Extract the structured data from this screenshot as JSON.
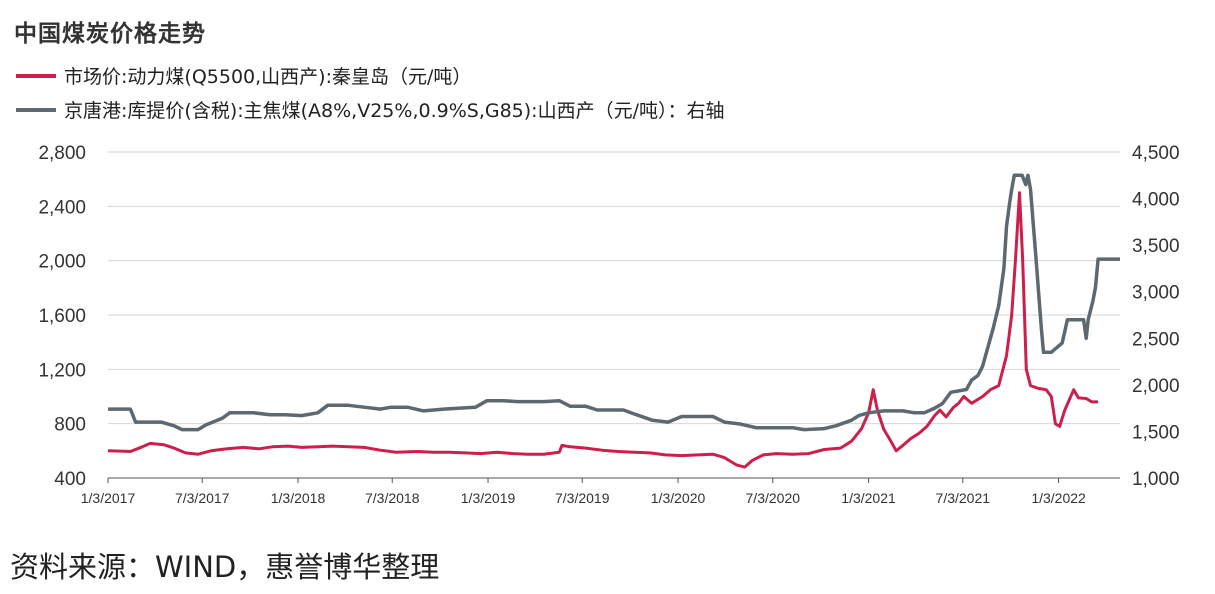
{
  "title": "中国煤炭价格走势",
  "source": "资料来源：WIND，惠誉博华整理",
  "colors": {
    "series1": "#cc1f4a",
    "series2": "#5e6870",
    "grid": "#d6d6d6",
    "axis": "#555555"
  },
  "chart_data": {
    "type": "line",
    "title": "中国煤炭价格走势",
    "x_tick_labels": [
      "1/3/2017",
      "7/3/2017",
      "1/3/2018",
      "7/3/2018",
      "1/3/2019",
      "7/3/2019",
      "1/3/2020",
      "7/3/2020",
      "1/3/2021",
      "7/3/2021",
      "1/3/2022"
    ],
    "x_range": [
      "2017-01-03",
      "2022-05-01"
    ],
    "y_left": {
      "range": [
        400,
        2800
      ],
      "ticks": [
        "400",
        "800",
        "1,200",
        "1,600",
        "2,000",
        "2,400",
        "2,800"
      ]
    },
    "y_right": {
      "range": [
        1000,
        4500
      ],
      "ticks": [
        "1,000",
        "1,500",
        "2,000",
        "2,500",
        "3,000",
        "3,500",
        "4,000",
        "4,500"
      ]
    },
    "grid": true,
    "legend_position": "top-left",
    "series": [
      {
        "name": "市场价:动力煤(Q5500,山西产):秦皇岛（元/吨）",
        "axis": "left",
        "points": [
          [
            "2017-01-03",
            600
          ],
          [
            "2017-02-15",
            595
          ],
          [
            "2017-03-10",
            630
          ],
          [
            "2017-03-25",
            655
          ],
          [
            "2017-04-20",
            645
          ],
          [
            "2017-05-10",
            620
          ],
          [
            "2017-06-01",
            585
          ],
          [
            "2017-06-25",
            575
          ],
          [
            "2017-07-20",
            600
          ],
          [
            "2017-08-20",
            615
          ],
          [
            "2017-09-20",
            625
          ],
          [
            "2017-10-20",
            615
          ],
          [
            "2017-11-15",
            630
          ],
          [
            "2017-12-15",
            635
          ],
          [
            "2018-01-10",
            625
          ],
          [
            "2018-02-10",
            630
          ],
          [
            "2018-03-10",
            635
          ],
          [
            "2018-04-10",
            630
          ],
          [
            "2018-05-10",
            625
          ],
          [
            "2018-06-10",
            605
          ],
          [
            "2018-07-10",
            590
          ],
          [
            "2018-08-20",
            595
          ],
          [
            "2018-09-20",
            590
          ],
          [
            "2018-10-20",
            590
          ],
          [
            "2018-11-20",
            585
          ],
          [
            "2018-12-20",
            580
          ],
          [
            "2019-01-20",
            590
          ],
          [
            "2019-02-20",
            580
          ],
          [
            "2019-03-20",
            575
          ],
          [
            "2019-04-20",
            575
          ],
          [
            "2019-05-20",
            590
          ],
          [
            "2019-05-25",
            640
          ],
          [
            "2019-06-10",
            630
          ],
          [
            "2019-07-10",
            620
          ],
          [
            "2019-08-10",
            605
          ],
          [
            "2019-09-10",
            595
          ],
          [
            "2019-10-10",
            590
          ],
          [
            "2019-11-10",
            585
          ],
          [
            "2019-12-10",
            570
          ],
          [
            "2020-01-10",
            565
          ],
          [
            "2020-02-10",
            570
          ],
          [
            "2020-03-10",
            575
          ],
          [
            "2020-04-01",
            550
          ],
          [
            "2020-04-25",
            495
          ],
          [
            "2020-05-10",
            480
          ],
          [
            "2020-05-25",
            530
          ],
          [
            "2020-06-15",
            570
          ],
          [
            "2020-07-10",
            580
          ],
          [
            "2020-08-10",
            575
          ],
          [
            "2020-09-10",
            580
          ],
          [
            "2020-10-10",
            610
          ],
          [
            "2020-11-10",
            620
          ],
          [
            "2020-12-01",
            670
          ],
          [
            "2020-12-20",
            760
          ],
          [
            "2021-01-03",
            880
          ],
          [
            "2021-01-12",
            1050
          ],
          [
            "2021-01-20",
            900
          ],
          [
            "2021-02-01",
            760
          ],
          [
            "2021-02-15",
            670
          ],
          [
            "2021-02-25",
            600
          ],
          [
            "2021-03-10",
            640
          ],
          [
            "2021-03-25",
            690
          ],
          [
            "2021-04-10",
            730
          ],
          [
            "2021-04-25",
            780
          ],
          [
            "2021-05-10",
            860
          ],
          [
            "2021-05-20",
            900
          ],
          [
            "2021-06-01",
            850
          ],
          [
            "2021-06-15",
            920
          ],
          [
            "2021-06-25",
            950
          ],
          [
            "2021-07-05",
            1000
          ],
          [
            "2021-07-20",
            950
          ],
          [
            "2021-08-10",
            1000
          ],
          [
            "2021-08-25",
            1050
          ],
          [
            "2021-09-10",
            1080
          ],
          [
            "2021-09-25",
            1300
          ],
          [
            "2021-10-05",
            1600
          ],
          [
            "2021-10-12",
            2000
          ],
          [
            "2021-10-20",
            2500
          ],
          [
            "2021-10-26",
            2000
          ],
          [
            "2021-11-02",
            1200
          ],
          [
            "2021-11-10",
            1080
          ],
          [
            "2021-11-25",
            1060
          ],
          [
            "2021-12-10",
            1050
          ],
          [
            "2021-12-20",
            1000
          ],
          [
            "2021-12-28",
            800
          ],
          [
            "2022-01-05",
            780
          ],
          [
            "2022-01-15",
            900
          ],
          [
            "2022-02-01",
            1050
          ],
          [
            "2022-02-10",
            990
          ],
          [
            "2022-02-25",
            985
          ],
          [
            "2022-03-08",
            960
          ],
          [
            "2022-03-20",
            960
          ]
        ]
      },
      {
        "name": "京唐港:库提价(含税):主焦煤(A8%,V25%,0.9%S,G85):山西产（元/吨）：右轴",
        "axis": "right",
        "points": [
          [
            "2017-01-03",
            1740
          ],
          [
            "2017-02-15",
            1740
          ],
          [
            "2017-02-25",
            1600
          ],
          [
            "2017-04-15",
            1600
          ],
          [
            "2017-05-10",
            1560
          ],
          [
            "2017-05-25",
            1520
          ],
          [
            "2017-06-25",
            1520
          ],
          [
            "2017-07-10",
            1570
          ],
          [
            "2017-08-10",
            1640
          ],
          [
            "2017-08-25",
            1700
          ],
          [
            "2017-10-10",
            1700
          ],
          [
            "2017-11-10",
            1680
          ],
          [
            "2017-12-10",
            1680
          ],
          [
            "2018-01-10",
            1670
          ],
          [
            "2018-02-10",
            1700
          ],
          [
            "2018-03-01",
            1780
          ],
          [
            "2018-04-10",
            1780
          ],
          [
            "2018-05-10",
            1760
          ],
          [
            "2018-06-10",
            1740
          ],
          [
            "2018-07-01",
            1760
          ],
          [
            "2018-08-01",
            1760
          ],
          [
            "2018-09-01",
            1720
          ],
          [
            "2018-10-10",
            1740
          ],
          [
            "2018-11-10",
            1750
          ],
          [
            "2018-12-10",
            1760
          ],
          [
            "2019-01-01",
            1830
          ],
          [
            "2019-02-01",
            1830
          ],
          [
            "2019-03-01",
            1820
          ],
          [
            "2019-04-20",
            1820
          ],
          [
            "2019-05-20",
            1830
          ],
          [
            "2019-06-10",
            1770
          ],
          [
            "2019-07-10",
            1770
          ],
          [
            "2019-08-01",
            1730
          ],
          [
            "2019-09-20",
            1730
          ],
          [
            "2019-10-15",
            1680
          ],
          [
            "2019-11-15",
            1620
          ],
          [
            "2019-12-15",
            1600
          ],
          [
            "2020-01-10",
            1660
          ],
          [
            "2020-03-10",
            1660
          ],
          [
            "2020-04-01",
            1600
          ],
          [
            "2020-05-01",
            1580
          ],
          [
            "2020-06-01",
            1540
          ],
          [
            "2020-07-10",
            1540
          ],
          [
            "2020-08-10",
            1540
          ],
          [
            "2020-09-01",
            1520
          ],
          [
            "2020-10-10",
            1530
          ],
          [
            "2020-11-01",
            1560
          ],
          [
            "2020-12-01",
            1620
          ],
          [
            "2020-12-15",
            1670
          ],
          [
            "2021-01-03",
            1700
          ],
          [
            "2021-02-01",
            1720
          ],
          [
            "2021-03-10",
            1720
          ],
          [
            "2021-04-01",
            1700
          ],
          [
            "2021-04-20",
            1700
          ],
          [
            "2021-05-10",
            1750
          ],
          [
            "2021-05-25",
            1800
          ],
          [
            "2021-06-10",
            1920
          ],
          [
            "2021-07-10",
            1950
          ],
          [
            "2021-07-20",
            2050
          ],
          [
            "2021-08-01",
            2100
          ],
          [
            "2021-08-10",
            2200
          ],
          [
            "2021-08-20",
            2400
          ],
          [
            "2021-08-30",
            2600
          ],
          [
            "2021-09-10",
            2850
          ],
          [
            "2021-09-20",
            3250
          ],
          [
            "2021-09-25",
            3700
          ],
          [
            "2021-10-01",
            3950
          ],
          [
            "2021-10-05",
            4100
          ],
          [
            "2021-10-10",
            4250
          ],
          [
            "2021-10-25",
            4250
          ],
          [
            "2021-11-01",
            4150
          ],
          [
            "2021-11-05",
            4250
          ],
          [
            "2021-11-10",
            4100
          ],
          [
            "2021-11-20",
            3400
          ],
          [
            "2021-12-01",
            2600
          ],
          [
            "2021-12-05",
            2350
          ],
          [
            "2021-12-20",
            2350
          ],
          [
            "2022-01-10",
            2450
          ],
          [
            "2022-01-20",
            2700
          ],
          [
            "2022-02-01",
            2700
          ],
          [
            "2022-02-20",
            2700
          ],
          [
            "2022-02-25",
            2500
          ],
          [
            "2022-03-01",
            2700
          ],
          [
            "2022-03-10",
            2900
          ],
          [
            "2022-03-15",
            3050
          ],
          [
            "2022-03-20",
            3350
          ],
          [
            "2022-04-05",
            3350
          ],
          [
            "2022-05-01",
            3350
          ]
        ]
      }
    ]
  }
}
